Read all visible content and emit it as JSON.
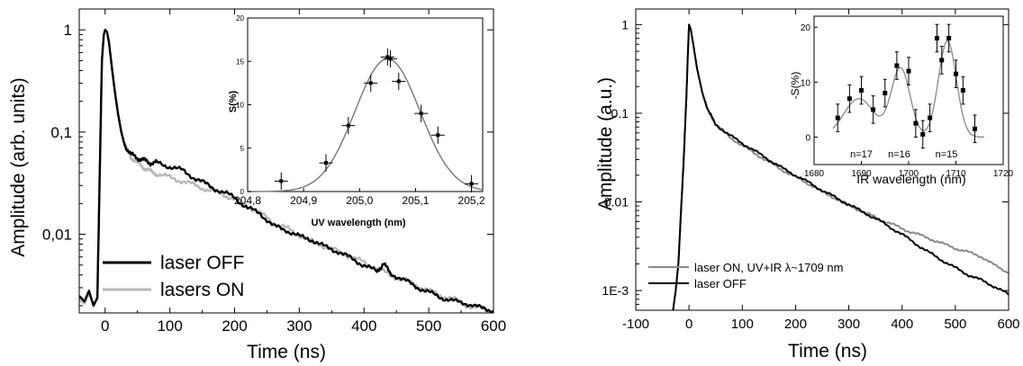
{
  "chart_data": [
    {
      "type": "line",
      "xlabel": "Time (ns)",
      "ylabel": "Amplitude (arb. units)",
      "xlim": [
        -40,
        600
      ],
      "ylim": [
        0.0017,
        1.6
      ],
      "yscale": "log",
      "xticks": [
        0,
        100,
        200,
        300,
        400,
        500,
        600
      ],
      "xtick_labels": [
        "0",
        "100",
        "200",
        "300",
        "400",
        "500",
        "600"
      ],
      "yticks": [
        1,
        0.1,
        0.01
      ],
      "ytick_labels": [
        "1",
        "0,1",
        "0,01"
      ],
      "legend": {
        "position": "bottom-left",
        "entries": [
          "laser OFF",
          "lasers ON"
        ]
      },
      "series": [
        {
          "name": "laser OFF",
          "color": "#000000",
          "x": [
            -40,
            -32,
            -25,
            -18,
            -12,
            -8,
            -5,
            -2,
            0,
            3,
            6,
            10,
            15,
            20,
            25,
            30,
            40,
            50,
            60,
            70,
            80,
            100,
            120,
            140,
            160,
            180,
            200,
            220,
            240,
            260,
            280,
            300,
            320,
            340,
            360,
            380,
            400,
            420,
            430,
            440,
            460,
            480,
            500,
            520,
            540,
            560,
            580,
            600
          ],
          "y": [
            0.0025,
            0.0022,
            0.0028,
            0.002,
            0.0024,
            0.05,
            0.5,
            0.9,
            1.0,
            0.95,
            0.75,
            0.45,
            0.25,
            0.15,
            0.1,
            0.075,
            0.06,
            0.056,
            0.053,
            0.05,
            0.05,
            0.046,
            0.042,
            0.035,
            0.03,
            0.026,
            0.023,
            0.018,
            0.016,
            0.012,
            0.011,
            0.0095,
            0.0088,
            0.0075,
            0.0068,
            0.0058,
            0.005,
            0.0043,
            0.0052,
            0.0042,
            0.0036,
            0.0031,
            0.0027,
            0.0024,
            0.0022,
            0.0021,
            0.0019,
            0.0018
          ]
        },
        {
          "name": "lasers ON",
          "color": "#b8b8b8",
          "x": [
            -40,
            -32,
            -25,
            -18,
            -12,
            -8,
            -5,
            -2,
            0,
            3,
            6,
            10,
            15,
            20,
            25,
            30,
            40,
            50,
            60,
            70,
            80,
            100,
            120,
            140,
            160,
            180,
            200,
            220,
            240,
            260,
            280,
            300,
            320,
            340,
            360,
            380,
            400,
            420,
            440,
            460,
            480,
            500,
            520,
            540,
            560,
            580,
            600
          ],
          "y": [
            0.0023,
            0.0021,
            0.0026,
            0.0021,
            0.0023,
            0.05,
            0.5,
            0.9,
            1.0,
            0.95,
            0.75,
            0.45,
            0.25,
            0.15,
            0.1,
            0.075,
            0.057,
            0.05,
            0.045,
            0.041,
            0.039,
            0.036,
            0.033,
            0.03,
            0.027,
            0.025,
            0.022,
            0.019,
            0.016,
            0.013,
            0.0115,
            0.0098,
            0.0085,
            0.0076,
            0.0068,
            0.006,
            0.0053,
            0.0046,
            0.004,
            0.0036,
            0.0032,
            0.0028,
            0.0025,
            0.0023,
            0.002,
            0.0019,
            0.0017
          ]
        }
      ],
      "inset": {
        "type": "scatter",
        "xlabel": "UV wavelength (nm)",
        "ylabel": "S(%)",
        "xlim": [
          204.8,
          205.22
        ],
        "ylim": [
          0,
          20
        ],
        "xticks": [
          204.8,
          204.9,
          205.0,
          205.1,
          205.2
        ],
        "xtick_labels": [
          "204,8",
          "204,9",
          "205,0",
          "205,1",
          "205,2"
        ],
        "yticks": [
          0,
          5,
          10,
          15,
          20
        ],
        "ytick_labels": [
          "0",
          "5",
          "10",
          "15",
          "20"
        ],
        "points": [
          {
            "x": 204.86,
            "y": 1.2,
            "xerr": 0.012,
            "yerr": 1.0
          },
          {
            "x": 204.94,
            "y": 3.3,
            "xerr": 0.012,
            "yerr": 1.0
          },
          {
            "x": 204.98,
            "y": 7.6,
            "xerr": 0.012,
            "yerr": 1.0
          },
          {
            "x": 205.02,
            "y": 12.5,
            "xerr": 0.012,
            "yerr": 1.0
          },
          {
            "x": 205.05,
            "y": 15.5,
            "xerr": 0.012,
            "yerr": 1.0
          },
          {
            "x": 205.055,
            "y": 15.3,
            "xerr": 0.012,
            "yerr": 1.0
          },
          {
            "x": 205.07,
            "y": 12.7,
            "xerr": 0.012,
            "yerr": 1.0
          },
          {
            "x": 205.11,
            "y": 9.0,
            "xerr": 0.012,
            "yerr": 1.0
          },
          {
            "x": 205.14,
            "y": 6.5,
            "xerr": 0.012,
            "yerr": 1.0
          },
          {
            "x": 205.2,
            "y": 0.9,
            "xerr": 0.012,
            "yerr": 1.0
          }
        ],
        "fit": {
          "type": "gaussian",
          "amplitude": 15.3,
          "center": 205.05,
          "sigma": 0.058
        }
      }
    },
    {
      "type": "line",
      "xlabel": "Time (ns)",
      "ylabel": "Amplitude (a.u.)",
      "xlim": [
        -100,
        600
      ],
      "ylim": [
        0.0006,
        1.5
      ],
      "yscale": "log",
      "xticks": [
        -100,
        0,
        100,
        200,
        300,
        400,
        500,
        600
      ],
      "xtick_labels": [
        "-100",
        "0",
        "100",
        "200",
        "300",
        "400",
        "500",
        "600"
      ],
      "yticks": [
        1,
        0.1,
        0.01,
        0.001
      ],
      "ytick_labels": [
        "1",
        "0.1",
        "0.01",
        "1E-3"
      ],
      "legend": {
        "position": "bottom-left",
        "entries": [
          "laser ON, UV+IR λ~1709 nm",
          "laser OFF"
        ]
      },
      "series": [
        {
          "name": "laser ON, UV+IR λ~1709 nm",
          "color": "#8a8a8a",
          "x": [
            -30,
            -25,
            -20,
            -15,
            -10,
            -5,
            -2,
            0,
            3,
            8,
            15,
            25,
            35,
            50,
            75,
            100,
            125,
            150,
            175,
            200,
            225,
            250,
            275,
            300,
            325,
            350,
            375,
            400,
            425,
            450,
            475,
            500,
            525,
            550,
            575,
            600
          ],
          "y": [
            0.0006,
            0.001,
            0.002,
            0.008,
            0.03,
            0.15,
            0.5,
            1.0,
            0.9,
            0.6,
            0.32,
            0.17,
            0.11,
            0.075,
            0.055,
            0.043,
            0.035,
            0.028,
            0.023,
            0.019,
            0.016,
            0.013,
            0.011,
            0.0092,
            0.0078,
            0.0067,
            0.0058,
            0.005,
            0.0044,
            0.0039,
            0.0034,
            0.003,
            0.0027,
            0.0024,
            0.0019,
            0.0016
          ]
        },
        {
          "name": "laser OFF",
          "color": "#000000",
          "x": [
            -30,
            -25,
            -20,
            -15,
            -10,
            -5,
            -2,
            0,
            3,
            8,
            15,
            25,
            35,
            50,
            75,
            100,
            125,
            150,
            175,
            200,
            225,
            250,
            275,
            300,
            325,
            350,
            375,
            400,
            425,
            450,
            475,
            500,
            525,
            550,
            575,
            600
          ],
          "y": [
            0.0006,
            0.001,
            0.002,
            0.008,
            0.03,
            0.15,
            0.5,
            1.0,
            0.9,
            0.6,
            0.32,
            0.17,
            0.11,
            0.075,
            0.057,
            0.046,
            0.037,
            0.03,
            0.024,
            0.02,
            0.0165,
            0.0135,
            0.0112,
            0.0093,
            0.0078,
            0.0065,
            0.0053,
            0.0043,
            0.0034,
            0.0027,
            0.0022,
            0.0018,
            0.0015,
            0.0013,
            0.0011,
            0.0009
          ]
        }
      ],
      "inset": {
        "type": "scatter",
        "xlabel": "IR wavelength (nm)",
        "ylabel": "-S(%)",
        "xlim": [
          1680,
          1720
        ],
        "ylim": [
          -5,
          22
        ],
        "xticks": [
          1680,
          1690,
          1700,
          1710,
          1720
        ],
        "xtick_labels": [
          "1680",
          "1690",
          "1700",
          "1710",
          "1720"
        ],
        "yticks": [
          0,
          10,
          20
        ],
        "ytick_labels": [
          "0",
          "10",
          "20"
        ],
        "annotations": [
          "n=17",
          "n=16",
          "n=15"
        ],
        "points": [
          {
            "x": 1685,
            "y": 3.5,
            "yerr": 2.5
          },
          {
            "x": 1687.5,
            "y": 7,
            "yerr": 2.5
          },
          {
            "x": 1690,
            "y": 8.5,
            "yerr": 2.5
          },
          {
            "x": 1692.5,
            "y": 5,
            "yerr": 2.5
          },
          {
            "x": 1695,
            "y": 8,
            "yerr": 2.5
          },
          {
            "x": 1697.5,
            "y": 13,
            "yerr": 2.5
          },
          {
            "x": 1700,
            "y": 12,
            "yerr": 2.5
          },
          {
            "x": 1701.5,
            "y": 2.5,
            "yerr": 2.5
          },
          {
            "x": 1703,
            "y": 0.5,
            "yerr": 2.5
          },
          {
            "x": 1704.5,
            "y": 3.5,
            "yerr": 2.5
          },
          {
            "x": 1706,
            "y": 18,
            "yerr": 2.5
          },
          {
            "x": 1707,
            "y": 14,
            "yerr": 2.5
          },
          {
            "x": 1708.5,
            "y": 18,
            "yerr": 2.5
          },
          {
            "x": 1710,
            "y": 11.5,
            "yerr": 2.5
          },
          {
            "x": 1711.5,
            "y": 8.5,
            "yerr": 2.5
          },
          {
            "x": 1714,
            "y": 1.5,
            "yerr": 2.5
          }
        ],
        "fit": {
          "type": "sum-of-gaussians",
          "components": [
            {
              "amplitude": 7,
              "center": 1689.5,
              "sigma": 3.2
            },
            {
              "amplitude": 12.5,
              "center": 1698.3,
              "sigma": 2.0
            },
            {
              "amplitude": 17.5,
              "center": 1708.2,
              "sigma": 1.9
            }
          ]
        }
      }
    }
  ]
}
